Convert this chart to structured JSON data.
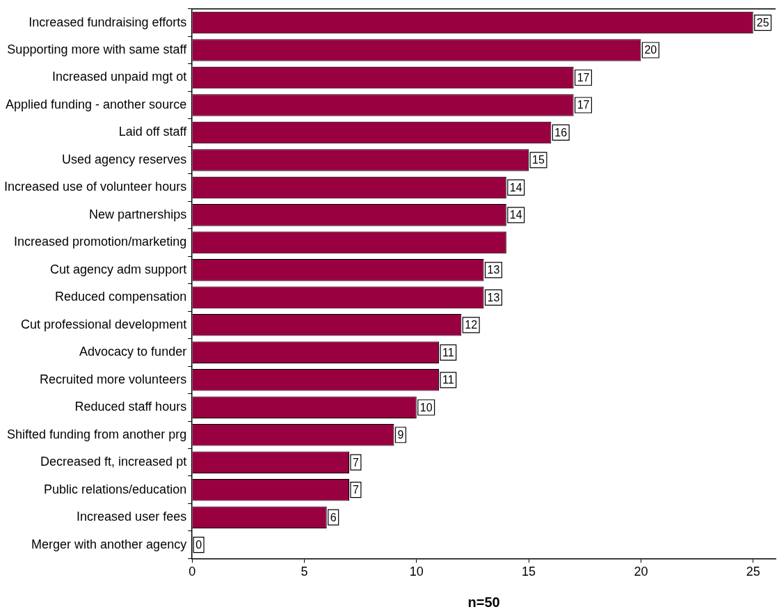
{
  "chart_data": {
    "type": "bar",
    "orientation": "horizontal",
    "xlabel": "n=50",
    "categories": [
      "Increased fundraising efforts",
      "Supporting more with same staff",
      "Increased unpaid mgt ot",
      "Applied funding - another source",
      "Laid off staff",
      "Used agency reserves",
      "Increased use of volunteer hours",
      "New partnerships",
      "Increased promotion/marketing",
      "Cut agency adm support",
      "Reduced compensation",
      "Cut professional development",
      "Advocacy to funder",
      "Recruited more volunteers",
      "Reduced staff hours",
      "Shifted funding from another prg",
      "Decreased ft, increased pt",
      "Public relations/education",
      "Increased user fees",
      "Merger with another agency"
    ],
    "values": [
      25,
      20,
      17,
      17,
      16,
      15,
      14,
      14,
      14,
      13,
      13,
      12,
      11,
      11,
      10,
      9,
      7,
      7,
      6,
      0
    ],
    "value_labels": [
      "25",
      "20",
      "17",
      "17",
      "16",
      "15",
      "14",
      "14",
      null,
      "13",
      "13",
      "12",
      "11",
      "11",
      "10",
      "9",
      "7",
      "7",
      "6",
      "0"
    ],
    "color": "#990040",
    "xlim": [
      0,
      26
    ],
    "xticks": [
      0,
      5,
      10,
      15,
      20,
      25
    ]
  }
}
